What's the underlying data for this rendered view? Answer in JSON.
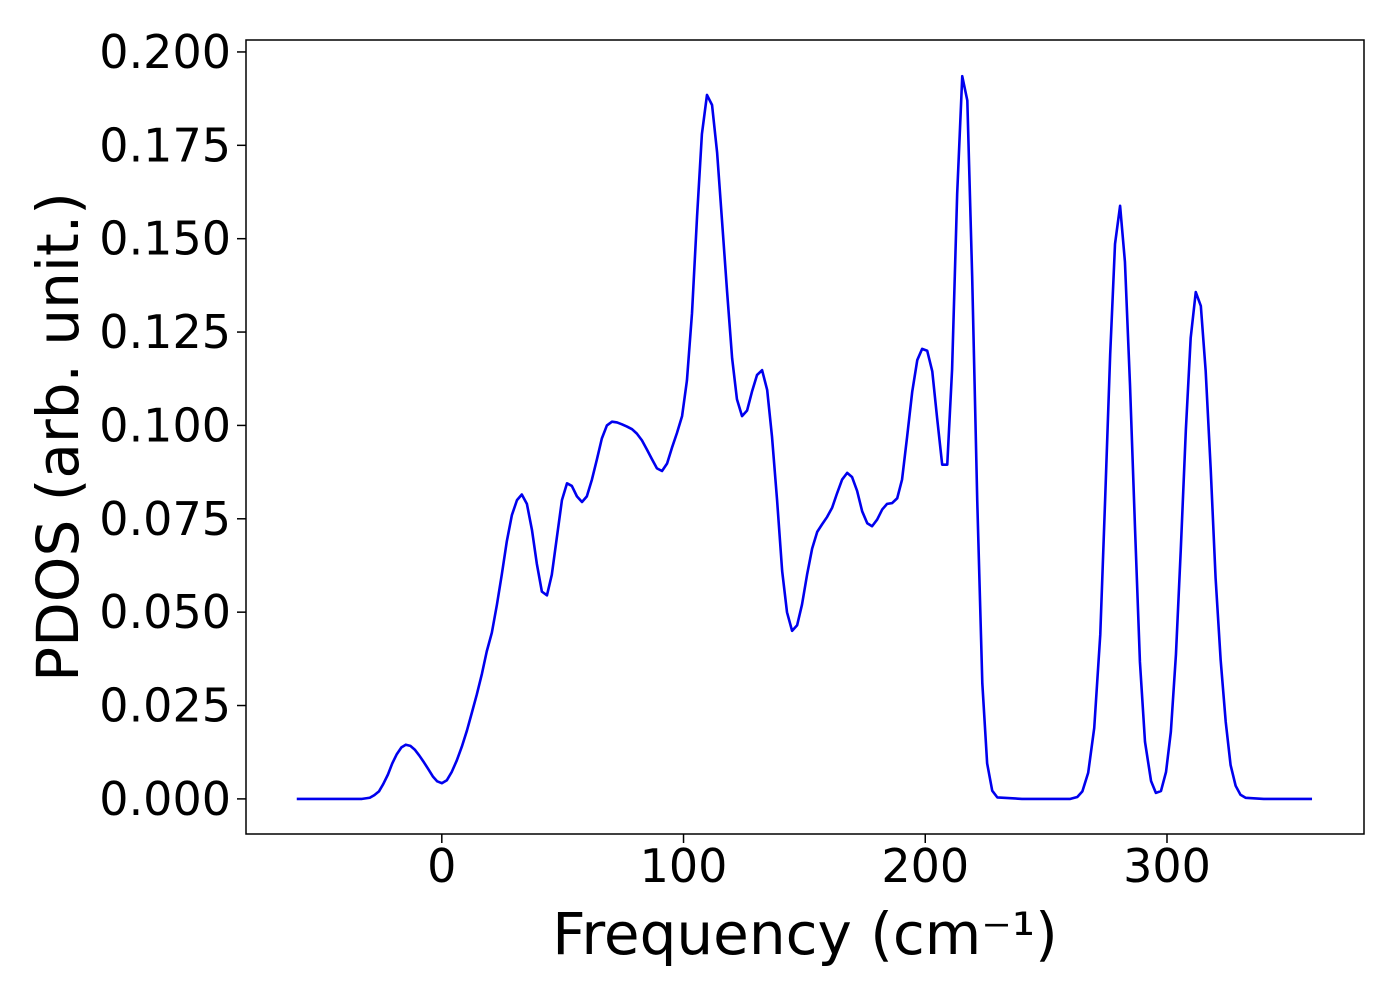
{
  "chart_data": {
    "type": "line",
    "x_label": "Frequency (cm⁻¹)",
    "y_label": "PDOS (arb. unit.)",
    "color": "#0000ee",
    "xlim": [
      -81,
      381.5
    ],
    "ylim": [
      -0.0094,
      0.2032
    ],
    "xticks": [
      0,
      100,
      200,
      300
    ],
    "yticks": [
      {
        "value": 0,
        "label": "0.000"
      },
      {
        "value": 0.025,
        "label": "0.025"
      },
      {
        "value": 0.05,
        "label": "0.050"
      },
      {
        "value": 0.075,
        "label": "0.075"
      },
      {
        "value": 0.1,
        "label": "0.100"
      },
      {
        "value": 0.125,
        "label": "0.125"
      },
      {
        "value": 0.15,
        "label": "0.150"
      },
      {
        "value": 0.175,
        "label": "0.175"
      },
      {
        "value": 0.2,
        "label": "0.200"
      }
    ],
    "x": [
      -60,
      -50,
      -40,
      -33,
      -29.8,
      -27.9,
      -26.0,
      -24.2,
      -22.3,
      -20.5,
      -18.6,
      -16.7,
      -14.9,
      -13.0,
      -11.2,
      -9.3,
      -7.4,
      -5.6,
      -3.7,
      -1.9,
      0,
      2.1,
      4.1,
      6.2,
      8.3,
      10.4,
      12.4,
      14.5,
      16.6,
      18.6,
      20.7,
      22.8,
      24.8,
      26.9,
      29.0,
      31.1,
      33.1,
      35.2,
      37.3,
      39.3,
      41.4,
      43.5,
      45.5,
      47.6,
      49.7,
      51.8,
      53.8,
      55.9,
      58.0,
      60.0,
      62.1,
      64.2,
      66.2,
      68.3,
      70.4,
      72.5,
      74.5,
      76.6,
      78.7,
      80.7,
      82.8,
      84.9,
      86.9,
      89.0,
      91.1,
      93.2,
      95.2,
      97.3,
      99.4,
      101.4,
      103.5,
      105.6,
      107.6,
      109.7,
      111.8,
      113.9,
      115.9,
      118.0,
      120.1,
      122.1,
      124.2,
      126.3,
      128.3,
      130.4,
      132.5,
      134.6,
      136.6,
      138.7,
      140.8,
      142.8,
      144.9,
      147.0,
      149.0,
      151.1,
      153.2,
      155.3,
      157.3,
      159.4,
      161.5,
      163.5,
      165.6,
      167.7,
      169.7,
      171.8,
      173.9,
      176.0,
      178.0,
      180.1,
      182.2,
      184.2,
      186.3,
      188.4,
      190.4,
      192.5,
      194.6,
      196.7,
      198.7,
      200.8,
      202.9,
      204.9,
      207.0,
      209.1,
      211.1,
      213.2,
      215.3,
      217.4,
      219.4,
      221.5,
      223.6,
      225.6,
      227.7,
      229.8,
      240,
      250,
      260,
      262.9,
      265,
      267.4,
      269.9,
      272.4,
      274.4,
      276.5,
      278.5,
      280.6,
      282.6,
      284.7,
      286.8,
      288.8,
      290.9,
      293.4,
      295.4,
      297.5,
      299.6,
      301.6,
      303.7,
      305.7,
      307.8,
      309.8,
      311.9,
      314,
      316,
      318.1,
      320.1,
      322.2,
      324.3,
      326.3,
      328.4,
      330.4,
      332.5,
      340,
      350,
      360
    ],
    "values": [
      0,
      0,
      0,
      0,
      0.0003,
      0.001,
      0.002,
      0.004,
      0.0065,
      0.0095,
      0.012,
      0.0138,
      0.0145,
      0.0142,
      0.0132,
      0.0116,
      0.0098,
      0.008,
      0.006,
      0.0047,
      0.0042,
      0.005,
      0.0072,
      0.0103,
      0.014,
      0.0183,
      0.023,
      0.028,
      0.0335,
      0.0395,
      0.0445,
      0.052,
      0.06,
      0.069,
      0.076,
      0.08,
      0.0815,
      0.079,
      0.072,
      0.063,
      0.0555,
      0.0545,
      0.06,
      0.07,
      0.08,
      0.0845,
      0.0838,
      0.081,
      0.0795,
      0.081,
      0.0855,
      0.091,
      0.0965,
      0.1,
      0.101,
      0.1008,
      0.1003,
      0.0997,
      0.099,
      0.0978,
      0.096,
      0.0935,
      0.091,
      0.0885,
      0.0878,
      0.0898,
      0.094,
      0.098,
      0.1025,
      0.112,
      0.13,
      0.156,
      0.178,
      0.1885,
      0.1858,
      0.173,
      0.155,
      0.136,
      0.118,
      0.107,
      0.1025,
      0.104,
      0.109,
      0.1135,
      0.1148,
      0.1095,
      0.097,
      0.08,
      0.061,
      0.05,
      0.045,
      0.0465,
      0.052,
      0.06,
      0.067,
      0.0715,
      0.0735,
      0.0755,
      0.078,
      0.0818,
      0.0855,
      0.0873,
      0.0862,
      0.0825,
      0.077,
      0.0738,
      0.073,
      0.0748,
      0.0775,
      0.079,
      0.0792,
      0.0805,
      0.0855,
      0.097,
      0.109,
      0.1175,
      0.1205,
      0.12,
      0.1145,
      0.102,
      0.0895,
      0.0895,
      0.115,
      0.162,
      0.1935,
      0.187,
      0.14,
      0.08,
      0.031,
      0.0095,
      0.0022,
      0.0004,
      0,
      0,
      0,
      0.0005,
      0.002,
      0.007,
      0.019,
      0.044,
      0.08,
      0.119,
      0.1486,
      0.1588,
      0.1438,
      0.1108,
      0.072,
      0.0367,
      0.0153,
      0.0048,
      0.0016,
      0.0021,
      0.0072,
      0.018,
      0.0386,
      0.0667,
      0.0988,
      0.1234,
      0.1357,
      0.132,
      0.1146,
      0.0881,
      0.0592,
      0.0372,
      0.0206,
      0.0091,
      0.0035,
      0.0011,
      0.0003,
      0,
      0,
      0
    ]
  }
}
